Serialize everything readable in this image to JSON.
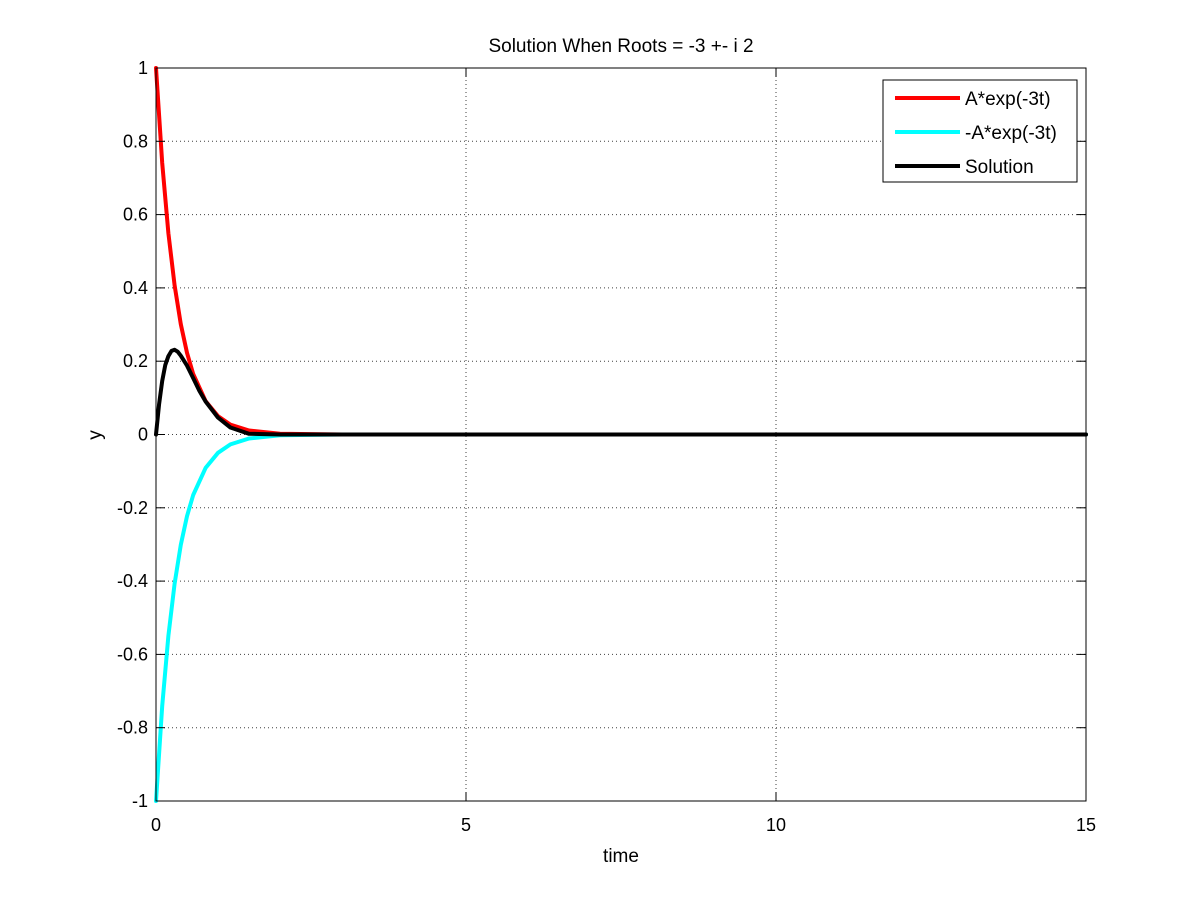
{
  "chart_data": {
    "type": "line",
    "title": "Solution When Roots = -3 +- i 2",
    "xlabel": "time",
    "ylabel": "y",
    "xlim": [
      0,
      15
    ],
    "ylim": [
      -1,
      1
    ],
    "grid": true,
    "legend_position": "top-right",
    "x_ticks": [
      0,
      5,
      10,
      15
    ],
    "x_tick_labels": [
      "0",
      "5",
      "10",
      "15"
    ],
    "y_ticks": [
      -1,
      -0.8,
      -0.6,
      -0.4,
      -0.2,
      0,
      0.2,
      0.4,
      0.6,
      0.8,
      1
    ],
    "y_tick_labels": [
      "-1",
      "-0.8",
      "-0.6",
      "-0.4",
      "-0.2",
      "0",
      "0.2",
      "0.4",
      "0.6",
      "0.8",
      "1"
    ],
    "series": [
      {
        "name": "A*exp(-3t)",
        "color": "#ff0000",
        "x": [
          0,
          0.1,
          0.2,
          0.3,
          0.4,
          0.5,
          0.6,
          0.8,
          1.0,
          1.2,
          1.5,
          2.0,
          3.0,
          5.0,
          10.0,
          15.0
        ],
        "y": [
          1.0,
          0.741,
          0.549,
          0.407,
          0.301,
          0.223,
          0.165,
          0.091,
          0.05,
          0.027,
          0.011,
          0.002,
          0.0,
          0.0,
          0.0,
          0.0
        ]
      },
      {
        "name": "-A*exp(-3t)",
        "color": "#00ffff",
        "x": [
          0,
          0.1,
          0.2,
          0.3,
          0.4,
          0.5,
          0.6,
          0.8,
          1.0,
          1.2,
          1.5,
          2.0,
          3.0,
          5.0,
          10.0,
          15.0
        ],
        "y": [
          -1.0,
          -0.741,
          -0.549,
          -0.407,
          -0.301,
          -0.223,
          -0.165,
          -0.091,
          -0.05,
          -0.027,
          -0.011,
          -0.002,
          0.0,
          0.0,
          0.0,
          0.0
        ]
      },
      {
        "name": "Solution",
        "color": "#000000",
        "x": [
          0,
          0.05,
          0.1,
          0.15,
          0.2,
          0.25,
          0.3,
          0.35,
          0.4,
          0.5,
          0.6,
          0.7,
          0.8,
          1.0,
          1.2,
          1.5,
          2.0,
          3.0,
          5.0,
          10.0,
          15.0
        ],
        "y": [
          0.0,
          0.083,
          0.146,
          0.19,
          0.214,
          0.228,
          0.231,
          0.226,
          0.215,
          0.188,
          0.154,
          0.119,
          0.09,
          0.046,
          0.019,
          0.002,
          0.0,
          0.0,
          0.0,
          0.0,
          0.0
        ]
      }
    ]
  }
}
